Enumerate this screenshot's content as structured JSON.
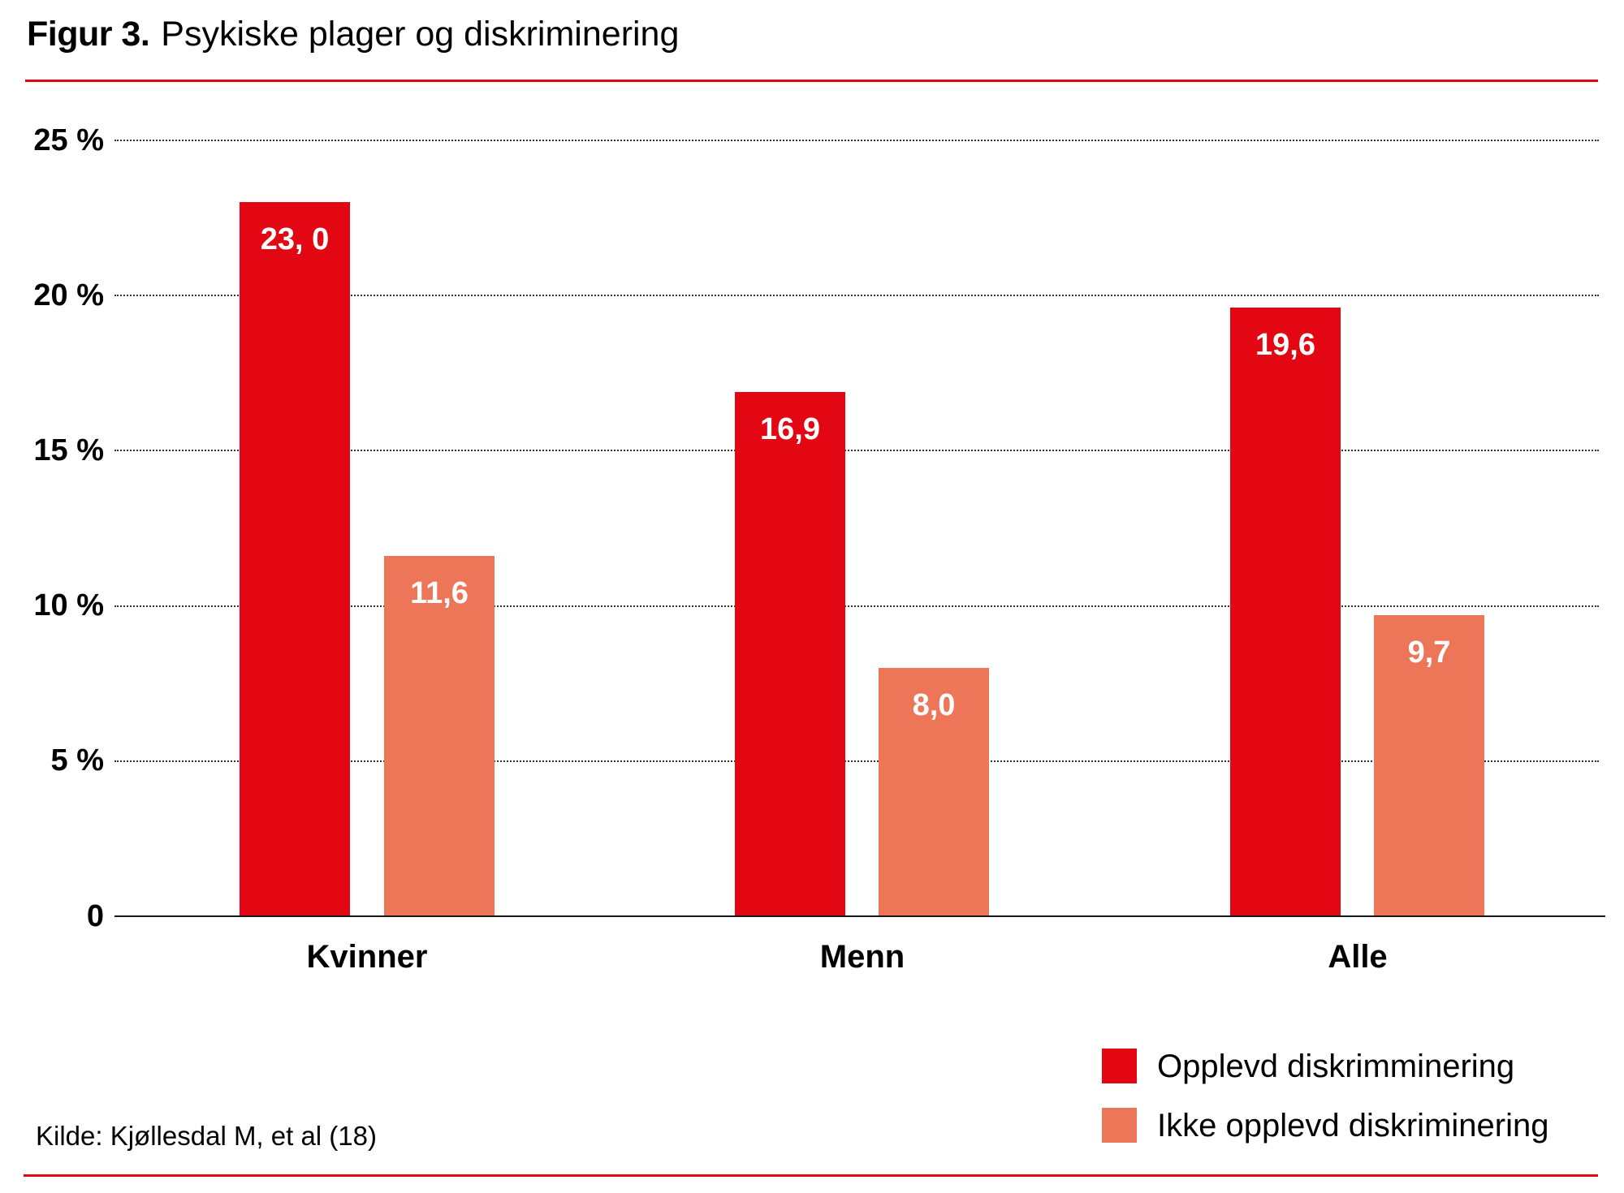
{
  "figure": {
    "number_label": "Figur 3.",
    "title": "Psykiske plager og diskriminering",
    "source": "Kilde: Kjøllesdal M, et al (18)"
  },
  "colors": {
    "accent_rule": "#e30613",
    "series_discriminated": "#e30613",
    "series_not_discriminated": "#ed7658"
  },
  "y_axis": {
    "ticks": [
      "25 %",
      "20 %",
      "15 %",
      "10 %",
      "5 %",
      "0"
    ]
  },
  "categories": [
    "Kvinner",
    "Menn",
    "Alle"
  ],
  "bars": [
    {
      "category": "Kvinner",
      "series": "Opplevd diskrimminering",
      "value": 23.0,
      "label": "23, 0"
    },
    {
      "category": "Kvinner",
      "series": "Ikke opplevd diskriminering",
      "value": 11.6,
      "label": "11,6"
    },
    {
      "category": "Menn",
      "series": "Opplevd diskrimminering",
      "value": 16.9,
      "label": "16,9"
    },
    {
      "category": "Menn",
      "series": "Ikke opplevd diskriminering",
      "value": 8.0,
      "label": "8,0"
    },
    {
      "category": "Alle",
      "series": "Opplevd diskrimminering",
      "value": 19.6,
      "label": "19,6"
    },
    {
      "category": "Alle",
      "series": "Ikke opplevd diskriminering",
      "value": 9.7,
      "label": "9,7"
    }
  ],
  "legend": [
    {
      "label": "Opplevd diskrimminering",
      "color": "#e30613"
    },
    {
      "label": "Ikke opplevd diskriminering",
      "color": "#ed7658"
    }
  ],
  "chart_data": {
    "type": "bar",
    "title": "Figur 3. Psykiske plager og diskriminering",
    "xlabel": "",
    "ylabel": "",
    "categories": [
      "Kvinner",
      "Menn",
      "Alle"
    ],
    "series": [
      {
        "name": "Opplevd diskrimminering",
        "color": "#e30613",
        "values": [
          23.0,
          16.9,
          19.6
        ],
        "labels": [
          "23, 0",
          "16,9",
          "19,6"
        ]
      },
      {
        "name": "Ikke opplevd diskriminering",
        "color": "#ed7658",
        "values": [
          11.6,
          8.0,
          9.7
        ],
        "labels": [
          "11,6",
          "8,0",
          "9,7"
        ]
      }
    ],
    "ylim": [
      0,
      25
    ],
    "yticks": [
      0,
      5,
      10,
      15,
      20,
      25
    ],
    "ytick_labels": [
      "0",
      "5 %",
      "10 %",
      "15 %",
      "20 %",
      "25 %"
    ],
    "grid": "horizontal dotted",
    "legend_position": "bottom-right",
    "source": "Kilde: Kjøllesdal M, et al (18)"
  }
}
